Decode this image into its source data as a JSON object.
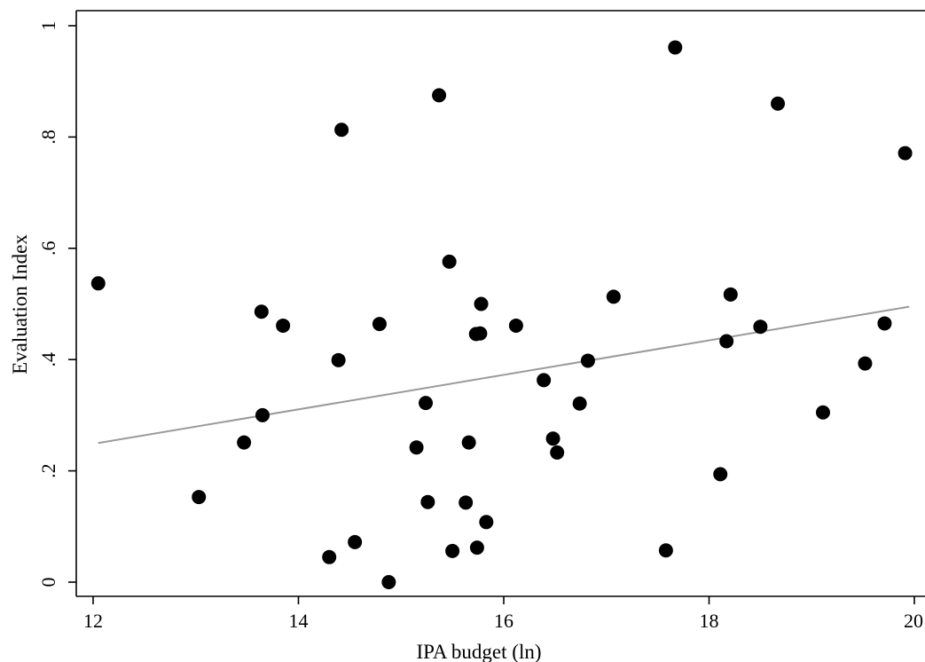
{
  "chart_data": {
    "type": "scatter",
    "xlabel": "IPA budget (ln)",
    "ylabel": "Evaluation Index",
    "xlim": [
      12,
      20
    ],
    "ylim": [
      0,
      1
    ],
    "xticks": [
      12,
      14,
      16,
      18,
      20
    ],
    "xtick_labels": [
      "12",
      "14",
      "16",
      "18",
      "20"
    ],
    "yticks": [
      0,
      0.2,
      0.4,
      0.6,
      0.8,
      1
    ],
    "ytick_labels": [
      "0",
      ".2",
      ".4",
      ".6",
      ".8",
      "1"
    ],
    "grid": false,
    "series": [
      {
        "points": [
          [
            12.05,
            0.537
          ],
          [
            13.03,
            0.153
          ],
          [
            13.47,
            0.251
          ],
          [
            13.64,
            0.486
          ],
          [
            13.65,
            0.3
          ],
          [
            13.85,
            0.461
          ],
          [
            14.3,
            0.045
          ],
          [
            14.39,
            0.399
          ],
          [
            14.42,
            0.813
          ],
          [
            14.55,
            0.072
          ],
          [
            14.79,
            0.464
          ],
          [
            14.88,
            0.0
          ],
          [
            15.15,
            0.242
          ],
          [
            15.24,
            0.322
          ],
          [
            15.26,
            0.144
          ],
          [
            15.37,
            0.875
          ],
          [
            15.47,
            0.576
          ],
          [
            15.5,
            0.056
          ],
          [
            15.63,
            0.143
          ],
          [
            15.66,
            0.251
          ],
          [
            15.73,
            0.446
          ],
          [
            15.74,
            0.062
          ],
          [
            15.77,
            0.447
          ],
          [
            15.78,
            0.5
          ],
          [
            15.83,
            0.108
          ],
          [
            16.12,
            0.461
          ],
          [
            16.39,
            0.363
          ],
          [
            16.48,
            0.258
          ],
          [
            16.52,
            0.233
          ],
          [
            16.74,
            0.321
          ],
          [
            16.82,
            0.398
          ],
          [
            17.07,
            0.513
          ],
          [
            17.58,
            0.057
          ],
          [
            17.67,
            0.961
          ],
          [
            18.11,
            0.194
          ],
          [
            18.17,
            0.433
          ],
          [
            18.21,
            0.517
          ],
          [
            18.5,
            0.459
          ],
          [
            18.67,
            0.86
          ],
          [
            19.11,
            0.305
          ],
          [
            19.52,
            0.393
          ],
          [
            19.71,
            0.465
          ],
          [
            19.91,
            0.771
          ]
        ]
      }
    ],
    "fit_line": {
      "x": [
        12.05,
        19.95
      ],
      "y": [
        0.25,
        0.495
      ]
    },
    "colors": {
      "points": "#000000",
      "fit_line": "#9a9a9a",
      "axes": "#000000"
    }
  }
}
